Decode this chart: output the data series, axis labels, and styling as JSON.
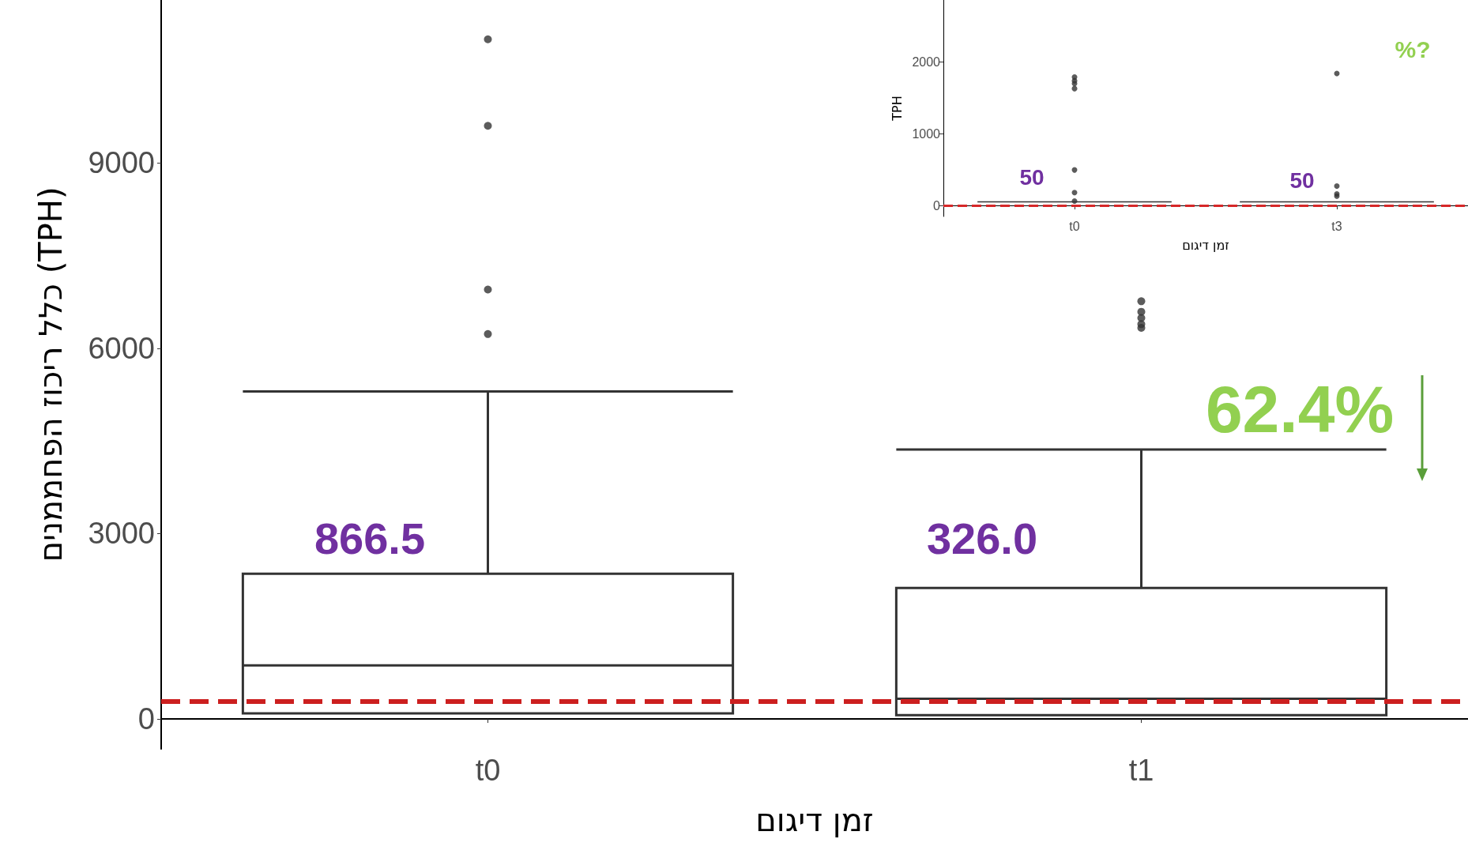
{
  "chart_data": [
    {
      "type": "box",
      "categories": [
        "t0",
        "t1"
      ],
      "xlabel": "זמן דיגום",
      "ylabel": "כלל ריכוז הפחממנים (TPH)",
      "boxes": [
        {
          "low": 90,
          "q1": 90,
          "median": 866.5,
          "q3": 2350,
          "high": 5300,
          "outliers": [
            11000,
            9600,
            6950,
            6230
          ]
        },
        {
          "low": 60,
          "q1": 60,
          "median": 326,
          "q3": 2120,
          "high": 4360,
          "outliers": [
            6760,
            6590,
            6490,
            6390,
            6330
          ]
        }
      ],
      "ylim": [
        -485,
        11636
      ],
      "yticks": [
        0,
        3000,
        6000,
        9000
      ],
      "ref_lines": [
        {
          "axis": "y",
          "value": 290,
          "color": "#cc1f1f",
          "line_style": "dashed"
        }
      ],
      "annotations": [
        "866.5",
        "326.0",
        "62.4%"
      ]
    },
    {
      "type": "box",
      "categories": [
        "t0",
        "t3"
      ],
      "xlabel": "זמן דיגום",
      "ylabel": "TPH",
      "boxes": [
        {
          "low": 50,
          "q1": 50,
          "median": 50,
          "q3": 50,
          "high": 50,
          "outliers": [
            1790,
            1740,
            1700,
            1630,
            495,
            180,
            60
          ]
        },
        {
          "low": 50,
          "q1": 50,
          "median": 50,
          "q3": 50,
          "high": 50,
          "outliers": [
            1840,
            270,
            160,
            130
          ]
        }
      ],
      "ylim": [
        -154,
        2866
      ],
      "yticks": [
        0,
        1000,
        2000
      ],
      "ref_lines": [
        {
          "axis": "y",
          "value": 0,
          "color": "#d62728",
          "line_style": "dashed"
        }
      ],
      "annotations": [
        {
          "text": "50",
          "x": "t0",
          "y": 50
        },
        {
          "text": "50",
          "x": "t3",
          "y": 50
        },
        "%?"
      ]
    }
  ]
}
